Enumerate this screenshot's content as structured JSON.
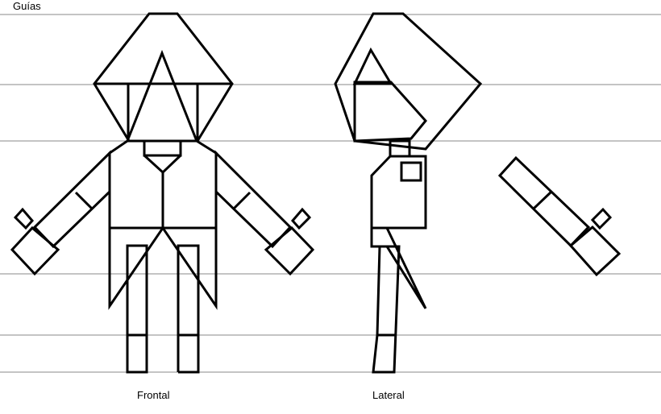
{
  "labels": {
    "title": "Guías",
    "front_view": "Frontal",
    "side_view": "Lateral"
  },
  "colors": {
    "background": "#ffffff",
    "line": "#000000",
    "guide": "#888888"
  },
  "guide_count": 6
}
